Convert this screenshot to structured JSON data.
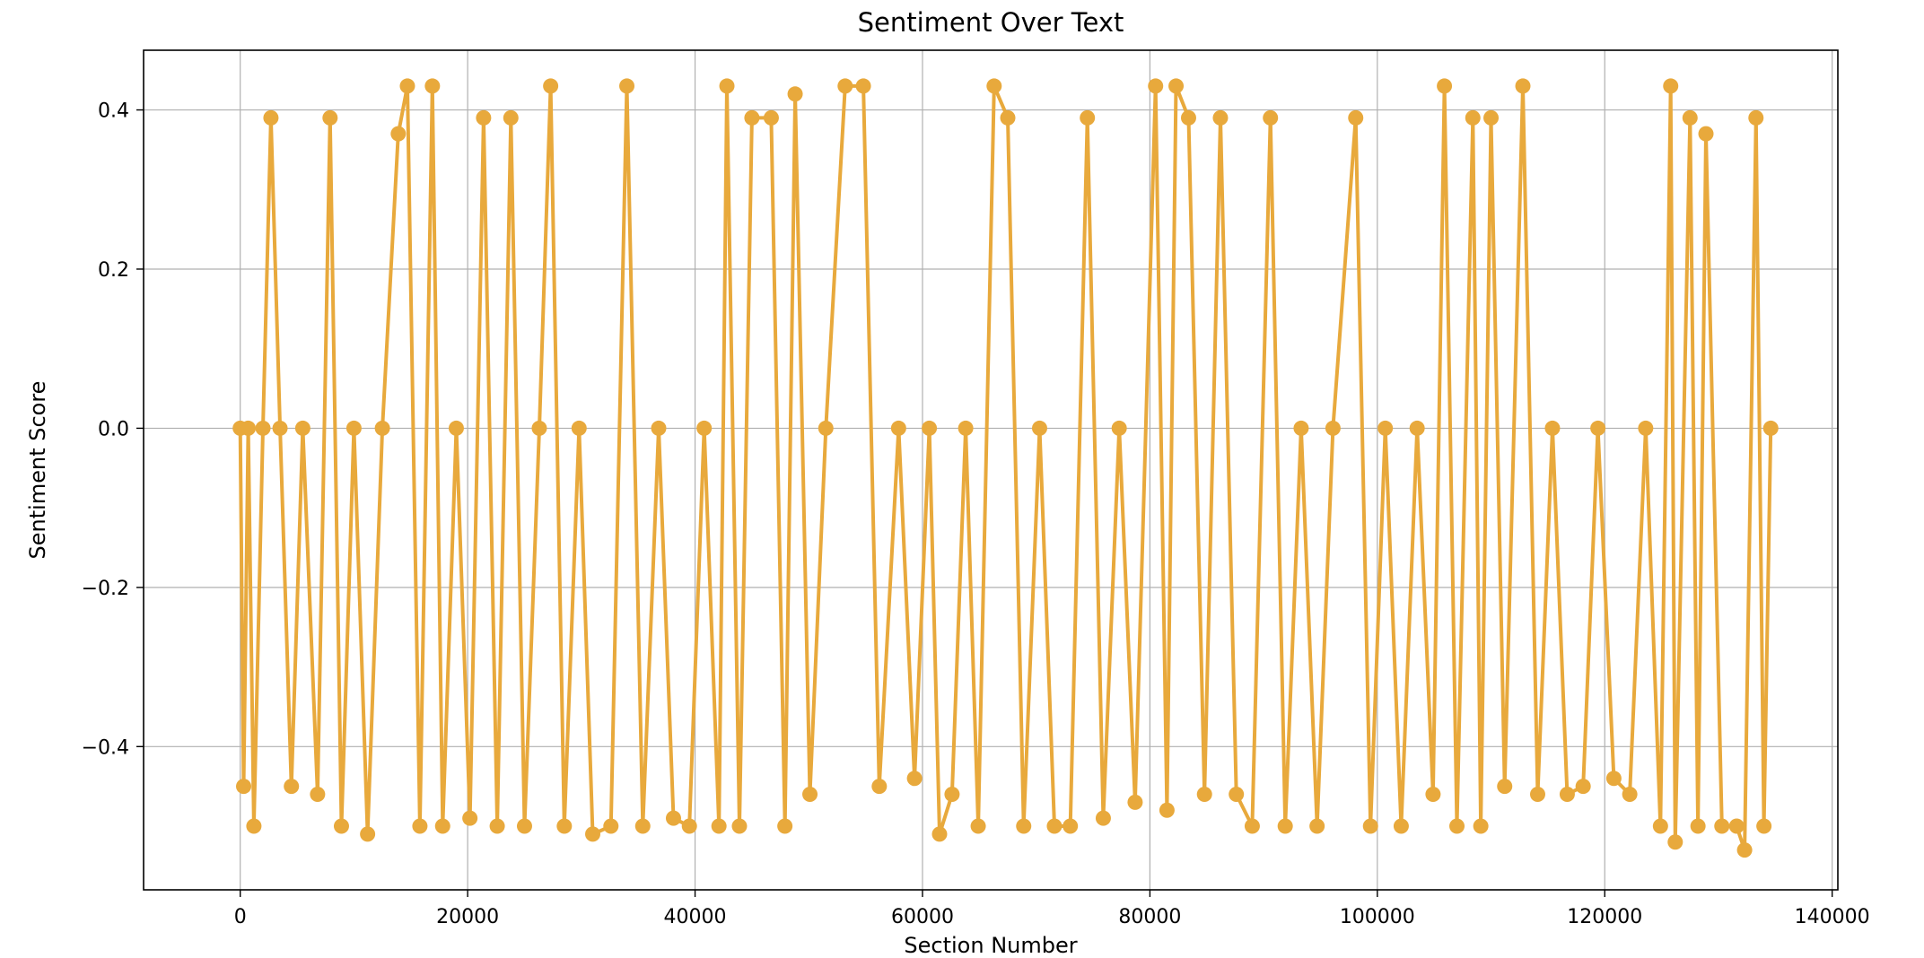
{
  "chart_data": {
    "type": "line",
    "title": "Sentiment Over Text",
    "xlabel": "Section Number",
    "ylabel": "Sentiment Score",
    "xlim": [
      -8500,
      140500
    ],
    "ylim": [
      -0.58,
      0.475
    ],
    "xticks": [
      0,
      20000,
      40000,
      60000,
      80000,
      100000,
      120000,
      140000
    ],
    "xtick_labels": [
      "0",
      "20000",
      "40000",
      "60000",
      "80000",
      "100000",
      "120000",
      "140000"
    ],
    "yticks": [
      -0.4,
      -0.2,
      0.0,
      0.2,
      0.4
    ],
    "ytick_labels": [
      "−0.4",
      "−0.2",
      "0.0",
      "0.2",
      "0.4"
    ],
    "grid": true,
    "legend": "none",
    "marker": "circle",
    "color": "#E8A93C",
    "series": [
      {
        "x": [
          0,
          300,
          700,
          1200,
          2000,
          2700,
          3500,
          4500,
          5500,
          6800,
          7900,
          8900,
          10000,
          11200,
          12500,
          13900,
          14700,
          15800,
          16900,
          17800,
          19000,
          20200,
          21400,
          22600,
          23800,
          25000,
          26300,
          27300,
          28500,
          29800,
          31000,
          32600,
          34000,
          35400,
          36800,
          38100,
          39500,
          40800,
          42100,
          42800,
          43900,
          45000,
          46700,
          47900,
          48800,
          50100,
          51500,
          53200,
          54800,
          56200,
          57900,
          59300,
          60600,
          61500,
          62600,
          63800,
          64900,
          66300,
          67500,
          68900,
          70300,
          71600,
          73000,
          74500,
          75900,
          77300,
          78700,
          80500,
          81500,
          82300,
          83400,
          84800,
          86200,
          87600,
          89000,
          90600,
          91900,
          93300,
          94700,
          96100,
          98100,
          99400,
          100700,
          102100,
          103500,
          104900,
          105900,
          107000,
          108400,
          109100,
          110000,
          111200,
          112800,
          114100,
          115400,
          116700,
          118100,
          119400,
          120800,
          122200,
          123600,
          124900,
          125800,
          126200,
          127500,
          128200,
          128900,
          130300,
          131600,
          132300,
          133300,
          134000,
          134600
        ],
        "y": [
          0.0,
          -0.45,
          0.0,
          -0.5,
          0.0,
          0.39,
          0.0,
          -0.45,
          0.0,
          -0.46,
          0.39,
          -0.5,
          0.0,
          -0.51,
          0.0,
          0.37,
          0.43,
          -0.5,
          0.43,
          -0.5,
          0.0,
          -0.49,
          0.39,
          -0.5,
          0.39,
          -0.5,
          0.0,
          0.43,
          -0.5,
          0.0,
          -0.51,
          -0.5,
          0.43,
          -0.5,
          0.0,
          -0.49,
          -0.5,
          0.0,
          -0.5,
          0.43,
          -0.5,
          0.39,
          0.39,
          -0.5,
          0.42,
          -0.46,
          0.0,
          0.43,
          0.43,
          -0.45,
          0.0,
          -0.44,
          0.0,
          -0.51,
          -0.46,
          0.0,
          -0.5,
          0.43,
          0.39,
          -0.5,
          0.0,
          -0.5,
          -0.5,
          0.39,
          -0.49,
          0.0,
          -0.47,
          0.43,
          -0.48,
          0.43,
          0.39,
          -0.46,
          0.39,
          -0.46,
          -0.5,
          0.39,
          -0.5,
          0.0,
          -0.5,
          0.0,
          0.39,
          -0.5,
          0.0,
          -0.5,
          0.0,
          -0.46,
          0.43,
          -0.5,
          0.39,
          -0.5,
          0.39,
          -0.45,
          0.43,
          -0.46,
          0.0,
          -0.46,
          -0.45,
          0.0,
          -0.44,
          -0.46,
          0.0,
          -0.5,
          0.43,
          -0.52,
          0.39,
          -0.5,
          0.37,
          -0.5,
          -0.5,
          -0.53,
          0.39,
          -0.5,
          0.0
        ]
      }
    ]
  }
}
